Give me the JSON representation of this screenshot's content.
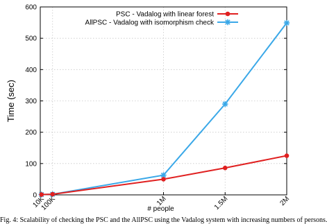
{
  "chart_data": {
    "type": "line",
    "x_categories": [
      "10K",
      "100K",
      "1M",
      "1.5M",
      "2M"
    ],
    "x_values": [
      10000,
      100000,
      1000000,
      1500000,
      2000000
    ],
    "xlabel": "# people",
    "ylabel": "Time (sec)",
    "ylim": [
      0,
      600
    ],
    "yticks": [
      0,
      100,
      200,
      300,
      400,
      500,
      600
    ],
    "grid": true,
    "legend_position": "top-right",
    "series": [
      {
        "name": "PSC - Vadalog with linear forest",
        "color": "#e02020",
        "marker": "circle",
        "values": [
          1,
          2,
          50,
          86,
          125
        ]
      },
      {
        "name": "AllPSC - Vadalog with isomorphism check",
        "color": "#3aa8e8",
        "marker": "star",
        "values": [
          1,
          2,
          63,
          290,
          549
        ]
      }
    ]
  },
  "caption": "Fig. 4: Scalability of checking the PSC and the AllPSC using the Vadalog system with increasing numbers of persons."
}
